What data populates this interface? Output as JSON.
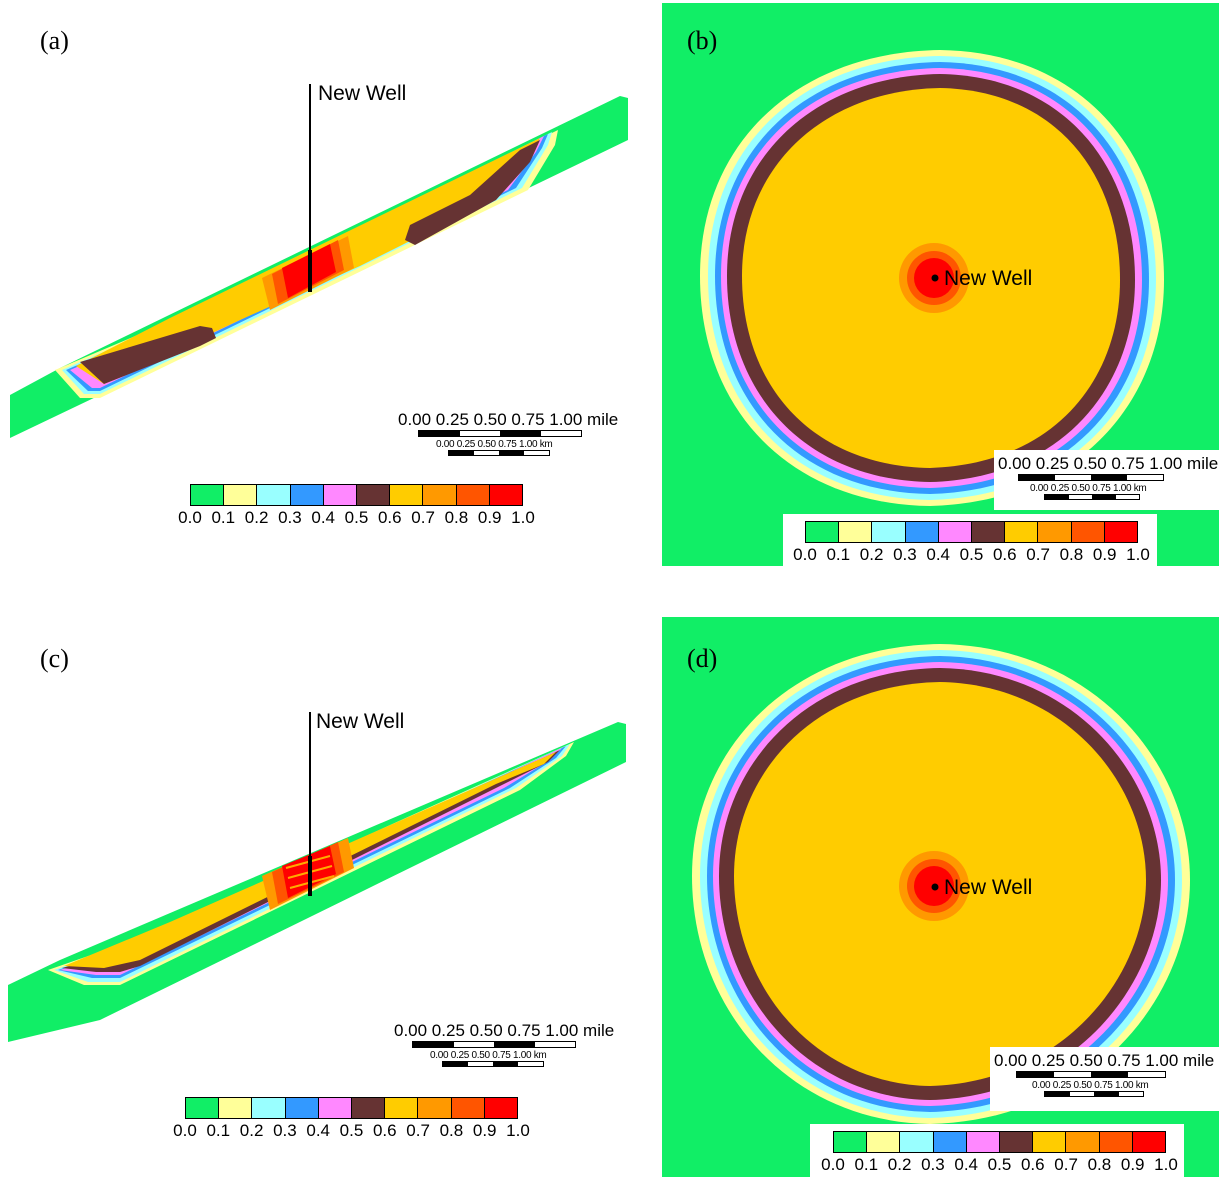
{
  "colors": {
    "c00": "#11ee66",
    "c01": "#ffff99",
    "c02": "#99ffff",
    "c03": "#3399ff",
    "c04": "#ff88ff",
    "c05": "#663333",
    "c06": "#ffcc00",
    "c07": "#ff9900",
    "c08": "#ff5500",
    "c09": "#ff0000"
  },
  "legend": {
    "ticks": [
      "0.0",
      "0.1",
      "0.2",
      "0.3",
      "0.4",
      "0.5",
      "0.6",
      "0.7",
      "0.8",
      "0.9",
      "1.0"
    ]
  },
  "scalebar": {
    "miles_label": "0.00  0.25  0.50  0.75  1.00 mile",
    "km_label": "0.00  0.25  0.50  0.75  1.00 km"
  },
  "panels": {
    "a": {
      "label": "(a)",
      "well": "New Well"
    },
    "b": {
      "label": "(b)",
      "well": "New Well"
    },
    "c": {
      "label": "(c)",
      "well": "New Well"
    },
    "d": {
      "label": "(d)",
      "well": "New Well"
    }
  }
}
